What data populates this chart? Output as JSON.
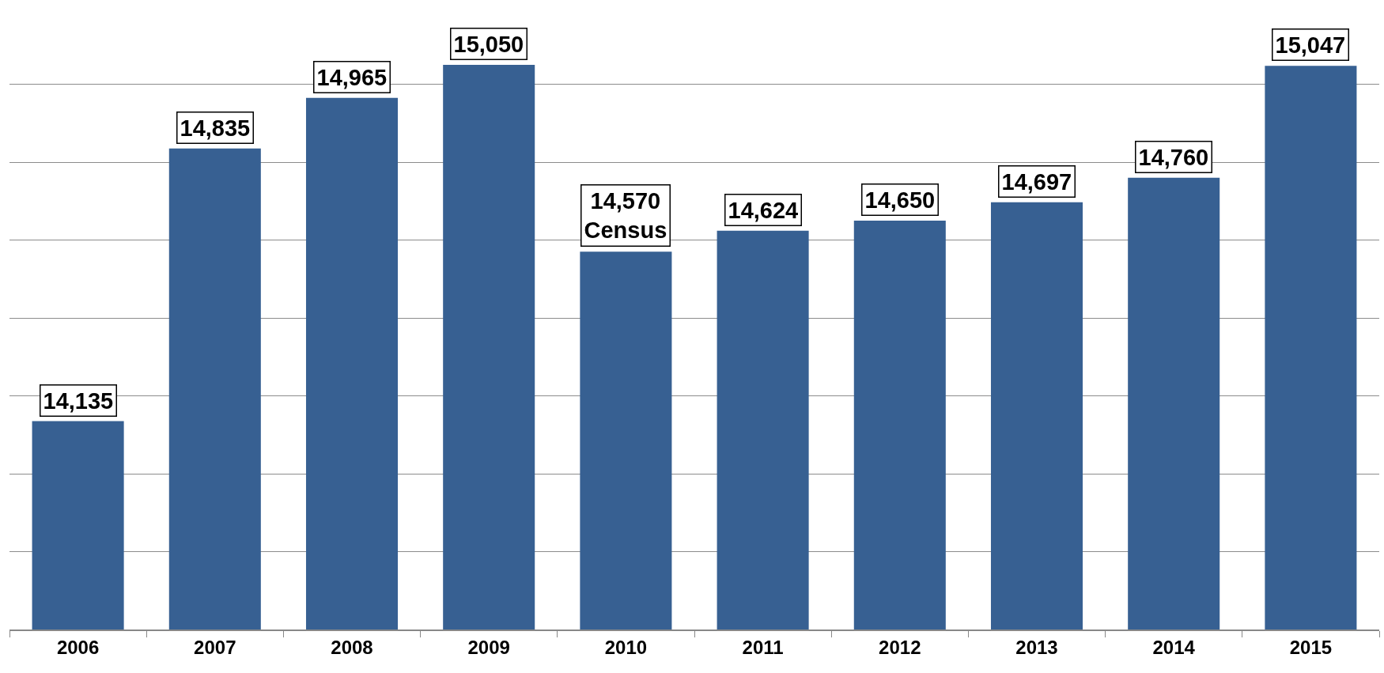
{
  "chart_data": {
    "type": "bar",
    "categories": [
      "2006",
      "2007",
      "2008",
      "2009",
      "2010",
      "2011",
      "2012",
      "2013",
      "2014",
      "2015"
    ],
    "values": [
      14135,
      14835,
      14965,
      15050,
      14570,
      14624,
      14650,
      14697,
      14760,
      15047
    ],
    "value_labels": [
      "14,135",
      "14,835",
      "14,965",
      "15,050",
      "14,570\nCensus",
      "14,624",
      "14,650",
      "14,697",
      "14,760",
      "15,047"
    ],
    "color": "#376092",
    "yticks": [
      {
        "value": 13600,
        "label": null
      },
      {
        "value": 13800,
        "label": null
      },
      {
        "value": 14000,
        "label": null
      },
      {
        "value": 14200,
        "label": null
      },
      {
        "value": 14400,
        "label": null
      },
      {
        "value": 14600,
        "label": null
      },
      {
        "value": 14800,
        "label": null
      },
      {
        "value": 15000,
        "label": null
      }
    ],
    "grid": "y",
    "tick_labels": "x",
    "legend": false
  }
}
